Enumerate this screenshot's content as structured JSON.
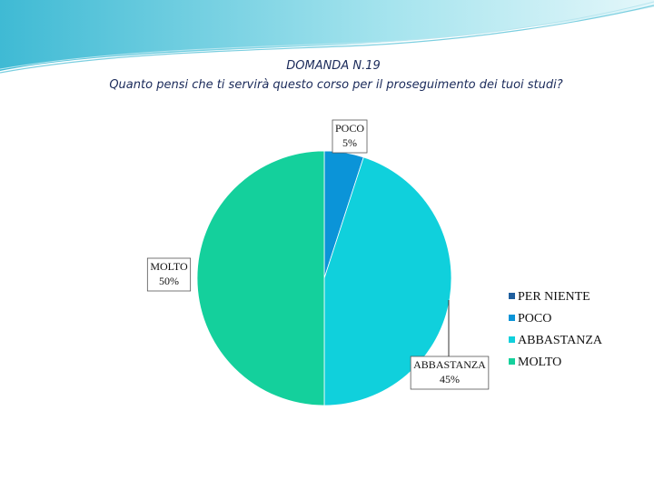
{
  "chart_data": {
    "type": "pie",
    "title": "DOMANDA N.19",
    "subtitle": "Quanto pensi che ti servirà questo corso per il proseguimento dei tuoi studi?",
    "categories": [
      "PER NIENTE",
      "POCO",
      "ABBASTANZA",
      "MOLTO"
    ],
    "values": [
      0,
      5,
      45,
      50
    ],
    "value_labels": [
      null,
      "5%",
      "45%",
      "50%"
    ],
    "colors": [
      "#1f5f9e",
      "#0b94d8",
      "#10d0dc",
      "#14d09c"
    ],
    "legend": "right"
  }
}
